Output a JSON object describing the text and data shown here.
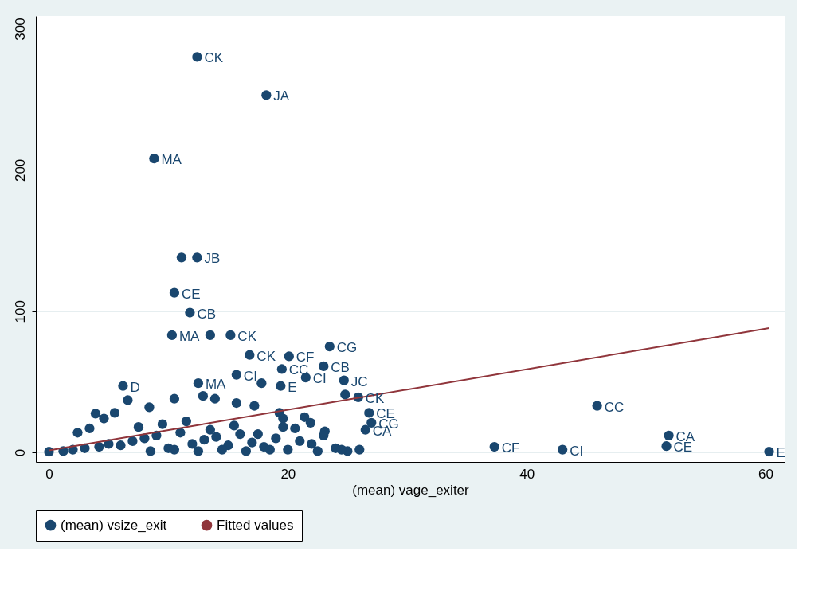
{
  "chart_data": {
    "type": "scatter",
    "xlabel": "(mean) vage_exiter",
    "xlim": [
      -1.1,
      61.6
    ],
    "ylim": [
      -6.7,
      309
    ],
    "xticks": [
      0,
      20,
      40,
      60
    ],
    "yticks": [
      0,
      100,
      200,
      300
    ],
    "grid": "y",
    "legend": "bottom",
    "series": [
      {
        "name": "(mean) vsize_exit",
        "color": "#1a476f",
        "type": "scatter",
        "marker": "circle",
        "x": [
          12.4,
          18.2,
          8.8,
          11.1,
          12.4,
          10.5,
          11.8,
          10.3,
          13.5,
          15.2,
          16.8,
          20.1,
          23.5,
          23.0,
          19.5,
          21.5,
          15.7,
          17.8,
          19.4,
          24.7,
          6.2,
          12.5,
          24.8,
          25.9,
          26.8,
          27.0,
          26.5,
          45.9,
          37.3,
          43.0,
          51.9,
          51.7,
          60.3,
          3.9,
          6.6,
          8.4,
          5.5,
          4.6,
          2.4,
          3.4,
          10.5,
          12.9,
          13.9,
          15.7,
          17.2,
          19.3,
          19.6,
          21.4,
          21.9,
          23.1,
          20.6,
          19.6,
          0,
          1.2,
          2.0,
          3.0,
          4.2,
          5.0,
          6.0,
          7.0,
          8.0,
          9.0,
          10.0,
          11.0,
          12.0,
          13.0,
          14.0,
          15.0,
          16.0,
          17.0,
          18.0,
          19.0,
          20.0,
          21.0,
          22.0,
          23.0,
          24.0,
          25.0,
          26.0,
          7.5,
          9.5,
          11.5,
          13.5,
          15.5,
          17.5,
          8.5,
          10.5,
          12.5,
          14.5,
          16.5,
          18.5,
          22.5,
          24.5
        ],
        "values": [
          280,
          253,
          208,
          138,
          138,
          113,
          99,
          83,
          83,
          83,
          69,
          68,
          75,
          61,
          59,
          53,
          55,
          49,
          47,
          51,
          47,
          49,
          41,
          39,
          28,
          21,
          16,
          33,
          4,
          2,
          12,
          4.5,
          0.6,
          27.5,
          37,
          32,
          28,
          24,
          14,
          17,
          38,
          40,
          38,
          35,
          33,
          28,
          24,
          25,
          21,
          15,
          17,
          18,
          0.5,
          1,
          2,
          3,
          4,
          6,
          5,
          8,
          10,
          12,
          3,
          14,
          6,
          9,
          11,
          5,
          13,
          7,
          4,
          10,
          2,
          8,
          6,
          12,
          3,
          1,
          2,
          18,
          20,
          22,
          16,
          19,
          13,
          1,
          2,
          1,
          2,
          1,
          2,
          1,
          2
        ]
      },
      {
        "name": "Fitted values",
        "color": "#90353b",
        "type": "line",
        "marker": "none",
        "line_style": "solid",
        "x": [
          0,
          60.3
        ],
        "values": [
          1.5,
          88
        ]
      }
    ],
    "annotations": [
      {
        "text": "CK",
        "x": 12.4,
        "y": 280
      },
      {
        "text": "JA",
        "x": 18.2,
        "y": 253
      },
      {
        "text": "MA",
        "x": 8.8,
        "y": 208
      },
      {
        "text": "JB",
        "x": 12.4,
        "y": 138
      },
      {
        "text": "CE",
        "x": 10.5,
        "y": 113
      },
      {
        "text": "CB",
        "x": 11.8,
        "y": 99
      },
      {
        "text": "MA",
        "x": 10.3,
        "y": 83
      },
      {
        "text": "CK",
        "x": 15.2,
        "y": 83
      },
      {
        "text": "CK",
        "x": 16.8,
        "y": 69
      },
      {
        "text": "CF",
        "x": 20.1,
        "y": 68
      },
      {
        "text": "CG",
        "x": 23.5,
        "y": 75
      },
      {
        "text": "CB",
        "x": 23.0,
        "y": 61
      },
      {
        "text": "CC",
        "x": 19.5,
        "y": 59
      },
      {
        "text": "CI",
        "x": 21.5,
        "y": 53
      },
      {
        "text": "CI",
        "x": 15.7,
        "y": 55
      },
      {
        "text": "E",
        "x": 19.4,
        "y": 47
      },
      {
        "text": "JC",
        "x": 24.7,
        "y": 51
      },
      {
        "text": "D",
        "x": 6.2,
        "y": 47
      },
      {
        "text": "MA",
        "x": 12.5,
        "y": 49
      },
      {
        "text": "CK",
        "x": 25.9,
        "y": 39
      },
      {
        "text": "CE",
        "x": 26.8,
        "y": 28
      },
      {
        "text": "CG",
        "x": 27.0,
        "y": 21
      },
      {
        "text": "CA",
        "x": 26.5,
        "y": 16
      },
      {
        "text": "CC",
        "x": 45.9,
        "y": 33
      },
      {
        "text": "CF",
        "x": 37.3,
        "y": 4
      },
      {
        "text": "CI",
        "x": 43.0,
        "y": 2
      },
      {
        "text": "CA",
        "x": 51.9,
        "y": 12
      },
      {
        "text": "CE",
        "x": 51.7,
        "y": 4.5
      },
      {
        "text": "E",
        "x": 60.3,
        "y": 0.6
      }
    ]
  }
}
